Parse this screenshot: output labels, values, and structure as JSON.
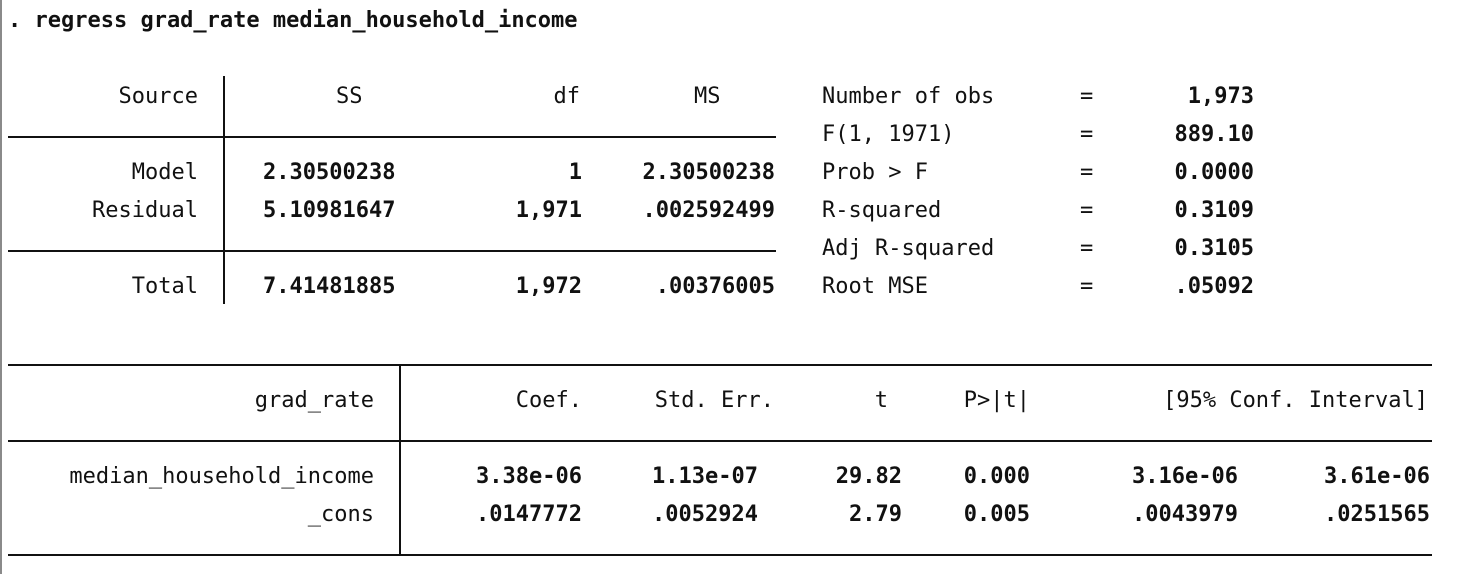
{
  "command": ". regress grad_rate median_household_income",
  "anova": {
    "headers": {
      "source": "Source",
      "ss": "SS",
      "df": "df",
      "ms": "MS"
    },
    "rows": [
      {
        "source": "Model",
        "ss": "2.30500238",
        "df": "1",
        "ms": "2.30500238"
      },
      {
        "source": "Residual",
        "ss": "5.10981647",
        "df": "1,971",
        "ms": ".002592499"
      },
      {
        "source": "Total",
        "ss": "7.41481885",
        "df": "1,972",
        "ms": ".00376005"
      }
    ]
  },
  "fit_stats": [
    {
      "label": "Number of obs",
      "eq": "=",
      "value": "1,973"
    },
    {
      "label": "F(1, 1971)",
      "eq": "=",
      "value": "889.10"
    },
    {
      "label": "Prob > F",
      "eq": "=",
      "value": "0.0000"
    },
    {
      "label": "R-squared",
      "eq": "=",
      "value": "0.3109"
    },
    {
      "label": "Adj R-squared",
      "eq": "=",
      "value": "0.3105"
    },
    {
      "label": "Root MSE",
      "eq": "=",
      "value": ".05092"
    }
  ],
  "coef_table": {
    "headers": {
      "depvar": "grad_rate",
      "coef": "Coef.",
      "se": "Std. Err.",
      "t": "t",
      "p": "P>|t|",
      "ci": "[95% Conf. Interval]"
    },
    "rows": [
      {
        "var": "median_household_income",
        "coef": "3.38e-06",
        "se": "1.13e-07",
        "t": "29.82",
        "p": "0.000",
        "ci_low": "3.16e-06",
        "ci_high": "3.61e-06"
      },
      {
        "var": "_cons",
        "coef": ".0147772",
        "se": ".0052924",
        "t": "2.79",
        "p": "0.005",
        "ci_low": ".0043979",
        "ci_high": ".0251565"
      }
    ]
  }
}
